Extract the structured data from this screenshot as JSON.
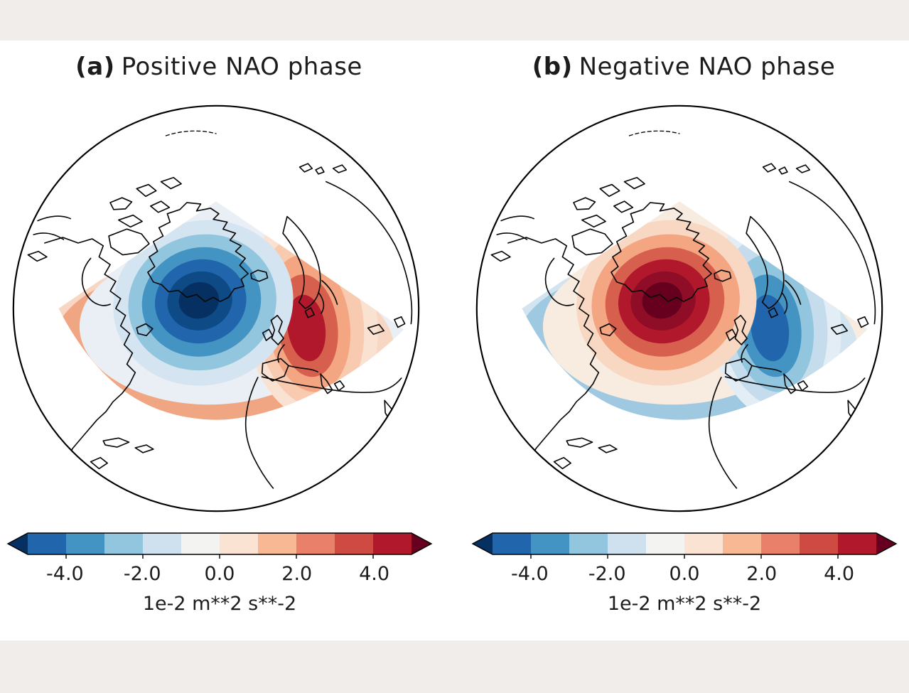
{
  "figure": {
    "panels": [
      {
        "tag": "(a)",
        "title": "Positive NAO phase"
      },
      {
        "tag": "(b)",
        "title": "Negative NAO phase"
      }
    ],
    "colorbar": {
      "tick_labels": [
        "-4.0",
        "-2.0",
        "0.0",
        "2.0",
        "4.0"
      ],
      "unit_label": "1e-2 m**2 s**-2",
      "extend_low_color": "#053061",
      "extend_high_color": "#67001f",
      "segment_colors": [
        "#2166ac",
        "#4393c3",
        "#92c5de",
        "#cfe1ee",
        "#f3f3f1",
        "#fbe3d4",
        "#f8b894",
        "#e9806a",
        "#cf4a43",
        "#b2182b"
      ]
    },
    "colors": {
      "page_margin": "#f0edea",
      "coastline": "#0a0a0a",
      "text": "#1c1c1c",
      "globe_fill": "#ffffff"
    },
    "palettes": {
      "a": {
        "base": "#e9eff5",
        "cres-out": "#f7d7c3",
        "cres-in": "#f0a683",
        "c2-0": "#b2182b",
        "c2-1": "#d6604d",
        "c2-2": "#f4a582",
        "c2-3": "#f8cbb0",
        "c2-4": "#fae2d3",
        "c1-0": "#053061",
        "c1-1": "#0d4a86",
        "c1-2": "#2166ac",
        "c1-3": "#4393c3",
        "c1-4": "#92c5de",
        "c1-5": "#d4e5f1"
      },
      "b": {
        "base": "#f8ece1",
        "cres-out": "#d2e4f0",
        "cres-in": "#9fc9e0",
        "c2-0": "#2166ac",
        "c2-1": "#4393c3",
        "c2-2": "#92c5de",
        "c2-3": "#c5dcec",
        "c2-4": "#e2edf5",
        "c1-0": "#67001f",
        "c1-1": "#8f0d26",
        "c1-2": "#b2182b",
        "c1-3": "#d6604d",
        "c1-4": "#f4a582",
        "c1-5": "#f8d8c3"
      }
    }
  },
  "chart_data": [
    {
      "type": "heatmap",
      "title": "(a) Positive NAO phase",
      "projection": "Northern Hemisphere orthographic view centered on the North Atlantic",
      "units": "1e-2 m**2 s**-2",
      "colormap": "RdBu_r",
      "levels": [
        -5,
        -4,
        -3,
        -2,
        -1,
        0,
        1,
        2,
        3,
        4,
        5
      ],
      "colorbar_ticks": [
        -4.0,
        -2.0,
        0.0,
        2.0,
        4.0
      ],
      "colorbar_extend": "both",
      "anomaly_centers": [
        {
          "region": "Greenland / Iceland (subpolar North Atlantic)",
          "sign": "negative",
          "approx_peak": -5
        },
        {
          "region": "Western and Central Europe / mid-latitude North Atlantic",
          "sign": "positive",
          "approx_peak": 3.5
        }
      ]
    },
    {
      "type": "heatmap",
      "title": "(b) Negative NAO phase",
      "projection": "Northern Hemisphere orthographic view centered on the North Atlantic",
      "units": "1e-2 m**2 s**-2",
      "colormap": "RdBu_r",
      "levels": [
        -5,
        -4,
        -3,
        -2,
        -1,
        0,
        1,
        2,
        3,
        4,
        5
      ],
      "colorbar_ticks": [
        -4.0,
        -2.0,
        0.0,
        2.0,
        4.0
      ],
      "colorbar_extend": "both",
      "anomaly_centers": [
        {
          "region": "Greenland / Iceland (subpolar North Atlantic)",
          "sign": "positive",
          "approx_peak": 5
        },
        {
          "region": "Western and Central Europe / mid-latitude North Atlantic",
          "sign": "negative",
          "approx_peak": -3.5
        }
      ]
    }
  ]
}
